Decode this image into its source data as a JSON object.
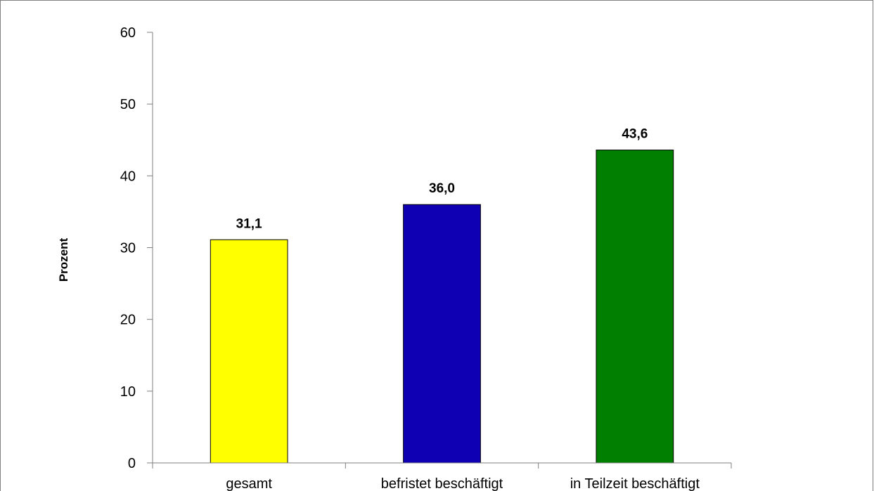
{
  "chart_data": {
    "type": "bar",
    "title": "",
    "xlabel": "",
    "ylabel": "Prozent",
    "ylim": [
      0,
      60
    ],
    "yticks": [
      0,
      10,
      20,
      30,
      40,
      50,
      60
    ],
    "grid": false,
    "legend": "none",
    "categories": [
      "gesamt",
      "befristet beschäftigt",
      "in Teilzeit beschäftigt"
    ],
    "values": [
      31.1,
      36.0,
      43.6
    ],
    "data_labels": [
      "31,1",
      "36,0",
      "43,6"
    ],
    "colors": [
      "#FFFF00",
      "#0F00B4",
      "#007F00"
    ]
  }
}
